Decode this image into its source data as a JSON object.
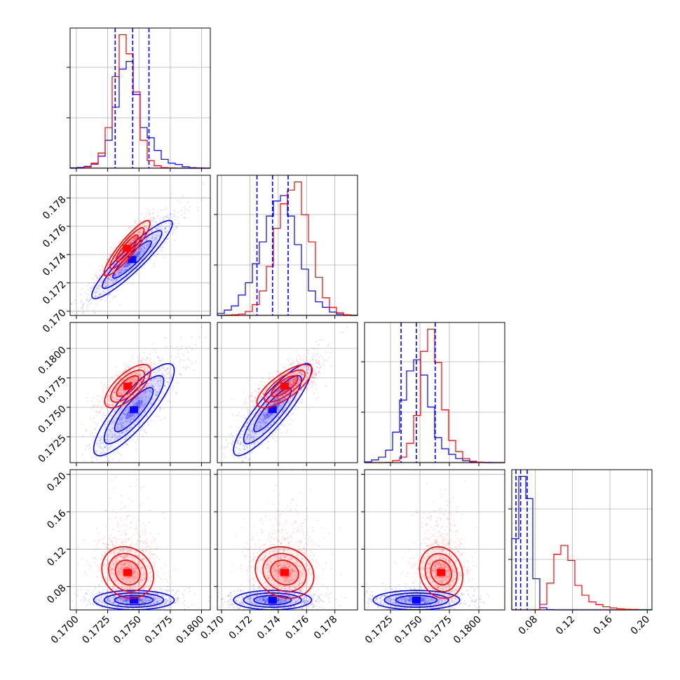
{
  "chart_data": {
    "type": "scatter",
    "title": "",
    "series": [
      {
        "color": "#0000ff"
      },
      {
        "color": "#ff0000"
      }
    ],
    "grid": true,
    "variables": [
      {
        "range": [
          0.1695,
          0.1807
        ],
        "ticks": [
          "0.1700",
          "0.1725",
          "0.1750",
          "0.1775",
          "0.1800"
        ]
      },
      {
        "range": [
          0.1697,
          0.1796
        ],
        "ticks": [
          "0.170",
          "0.172",
          "0.174",
          "0.176",
          "0.178"
        ]
      },
      {
        "range": [
          0.1703,
          0.1822
        ],
        "ticks": [
          "0.1725",
          "0.1750",
          "0.1775",
          "0.1800"
        ]
      },
      {
        "range": [
          0.055,
          0.205
        ],
        "ticks": [
          "0.08",
          "0.12",
          "0.16",
          "0.20"
        ]
      }
    ],
    "quantiles": [
      {
        "blue": [
          0.1731,
          0.1745,
          0.1758
        ]
      },
      {
        "blue": [
          0.1725,
          0.1736,
          0.1747
        ]
      },
      {
        "blue": [
          0.1734,
          0.1747,
          0.1763
        ]
      },
      {
        "blue": [
          0.0595,
          0.0645,
          0.0715
        ]
      }
    ],
    "marginals": [
      {
        "edges_range": [
          0.1695,
          0.1807
        ],
        "blue": [
          0.3,
          0.6,
          1.5,
          3.2,
          9.5,
          22,
          48,
          78,
          84,
          58,
          32,
          24,
          14,
          7,
          4,
          3,
          1.2,
          0.4,
          0.2,
          0
        ],
        "red": [
          0,
          0.3,
          1,
          4,
          12,
          32,
          72,
          105,
          90,
          60,
          22,
          6,
          2,
          0.5,
          0.2,
          0,
          0,
          0,
          0,
          0
        ]
      },
      {
        "edges_range": [
          0.1697,
          0.1796
        ],
        "blue": [
          1.5,
          4,
          7,
          15,
          24,
          38,
          54,
          73,
          84,
          88,
          73,
          52,
          34,
          18,
          10,
          6,
          2.5,
          1,
          0.4,
          0
        ],
        "red": [
          0,
          0.3,
          0.5,
          1,
          3,
          8,
          18,
          36,
          64,
          82,
          92,
          98,
          74,
          54,
          28,
          13,
          6,
          2,
          0.5,
          0.2
        ]
      },
      {
        "edges_range": [
          0.1703,
          0.1822
        ],
        "blue": [
          0.6,
          2,
          4,
          9,
          22,
          45,
          66,
          74,
          63,
          40,
          18,
          10,
          6,
          3,
          1.4,
          0.5,
          0.2,
          0,
          0,
          0
        ],
        "red": [
          0,
          0,
          0,
          0.2,
          1.5,
          4,
          14,
          34,
          80,
          96,
          72,
          38,
          16,
          8,
          3,
          1,
          0.4,
          0.2,
          0,
          0
        ]
      },
      {
        "edges_range": [
          0.055,
          0.205
        ],
        "blue": [
          320,
          600,
          500,
          140,
          10,
          1,
          0,
          0,
          0,
          0,
          0,
          0,
          0,
          0,
          0,
          0,
          0,
          0,
          0,
          0
        ],
        "red": [
          0,
          0,
          0,
          1,
          25,
          120,
          250,
          290,
          222,
          110,
          66,
          36,
          24,
          14,
          9,
          5,
          3,
          2,
          1,
          0.5
        ]
      }
    ],
    "pairs": [
      {
        "x": 0,
        "y": 1,
        "blue": {
          "mx": 0.17445,
          "my": 0.17365,
          "sx": 0.0014,
          "sy": 0.0012,
          "rho": 0.92
        },
        "red": {
          "mx": 0.17405,
          "my": 0.17445,
          "sx": 0.0008,
          "sy": 0.00085,
          "rho": 0.9
        }
      },
      {
        "x": 0,
        "y": 2,
        "blue": {
          "mx": 0.1746,
          "my": 0.1748,
          "sx": 0.0014,
          "sy": 0.0017,
          "rho": 0.85
        },
        "red": {
          "mx": 0.1741,
          "my": 0.1768,
          "sx": 0.0008,
          "sy": 0.0008,
          "rho": 0.7
        }
      },
      {
        "x": 1,
        "y": 2,
        "blue": {
          "mx": 0.1736,
          "my": 0.1748,
          "sx": 0.0012,
          "sy": 0.0017,
          "rho": 0.88
        },
        "red": {
          "mx": 0.17445,
          "my": 0.1768,
          "sx": 0.00085,
          "sy": 0.0008,
          "rho": 0.75
        }
      },
      {
        "x": 0,
        "y": 3,
        "blue": {
          "mx": 0.1746,
          "my": 0.0655,
          "sx": 0.0014,
          "sy": 0.0045,
          "rho": 0.0
        },
        "red": {
          "mx": 0.1741,
          "my": 0.095,
          "sx": 0.0009,
          "sy": 0.012,
          "rho": -0.15
        }
      },
      {
        "x": 1,
        "y": 3,
        "blue": {
          "mx": 0.1736,
          "my": 0.0655,
          "sx": 0.0012,
          "sy": 0.0045,
          "rho": 0.0
        },
        "red": {
          "mx": 0.17445,
          "my": 0.095,
          "sx": 0.0009,
          "sy": 0.012,
          "rho": -0.15
        }
      },
      {
        "x": 2,
        "y": 3,
        "blue": {
          "mx": 0.1747,
          "my": 0.0655,
          "sx": 0.0016,
          "sy": 0.0045,
          "rho": 0.0
        },
        "red": {
          "mx": 0.1768,
          "my": 0.095,
          "sx": 0.0008,
          "sy": 0.012,
          "rho": -0.15
        }
      }
    ]
  }
}
